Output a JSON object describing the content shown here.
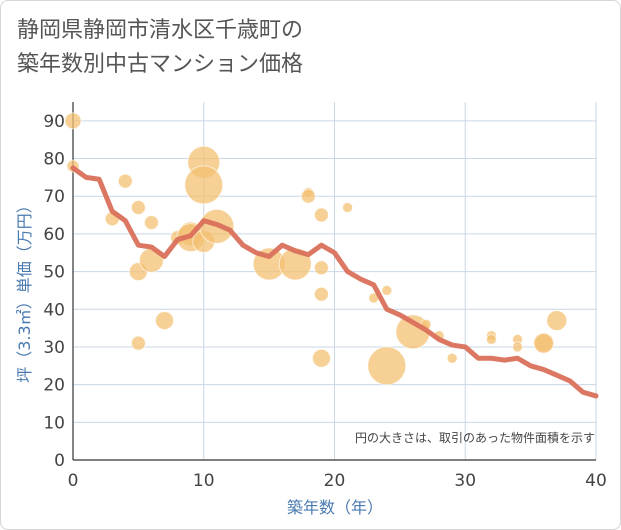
{
  "title": {
    "line1": "静岡県静岡市清水区千歳町の",
    "line2": "築年数別中古マンション価格"
  },
  "chart_data": {
    "type": "scatter",
    "xlabel": "築年数（年）",
    "ylabel": "坪（3.3㎡）単価（万円）",
    "xlim": [
      0,
      40
    ],
    "ylim": [
      0,
      95
    ],
    "xticks": [
      0,
      10,
      20,
      30,
      40
    ],
    "yticks": [
      0,
      10,
      20,
      30,
      40,
      50,
      60,
      70,
      80,
      90
    ],
    "grid": true,
    "note": "円の大きさは、取引のあった物件面積を示す",
    "colors": {
      "bubble": "#f3c071",
      "line": "#d9705a",
      "grid": "#c9d7e6",
      "label": "#4a7ab0"
    },
    "bubbles": [
      {
        "x": 0,
        "y": 90,
        "size": 8
      },
      {
        "x": 0,
        "y": 78,
        "size": 6
      },
      {
        "x": 3,
        "y": 64,
        "size": 7
      },
      {
        "x": 4,
        "y": 74,
        "size": 7
      },
      {
        "x": 5,
        "y": 67,
        "size": 7
      },
      {
        "x": 5,
        "y": 50,
        "size": 9
      },
      {
        "x": 5,
        "y": 31,
        "size": 7
      },
      {
        "x": 6,
        "y": 63,
        "size": 7
      },
      {
        "x": 6,
        "y": 53,
        "size": 12
      },
      {
        "x": 7,
        "y": 37,
        "size": 9
      },
      {
        "x": 8,
        "y": 59,
        "size": 7
      },
      {
        "x": 9,
        "y": 60,
        "size": 12
      },
      {
        "x": 9,
        "y": 59,
        "size": 14
      },
      {
        "x": 10,
        "y": 79,
        "size": 16
      },
      {
        "x": 10,
        "y": 73,
        "size": 19
      },
      {
        "x": 10,
        "y": 58,
        "size": 11
      },
      {
        "x": 11,
        "y": 62,
        "size": 17
      },
      {
        "x": 15,
        "y": 52,
        "size": 16
      },
      {
        "x": 17,
        "y": 52,
        "size": 16
      },
      {
        "x": 18,
        "y": 71,
        "size": 5
      },
      {
        "x": 18,
        "y": 70,
        "size": 7
      },
      {
        "x": 19,
        "y": 65,
        "size": 7
      },
      {
        "x": 19,
        "y": 51,
        "size": 7
      },
      {
        "x": 19,
        "y": 44,
        "size": 7
      },
      {
        "x": 19,
        "y": 27,
        "size": 9
      },
      {
        "x": 21,
        "y": 67,
        "size": 5
      },
      {
        "x": 23,
        "y": 43,
        "size": 5
      },
      {
        "x": 24,
        "y": 45,
        "size": 5
      },
      {
        "x": 24,
        "y": 25,
        "size": 19
      },
      {
        "x": 26,
        "y": 34,
        "size": 17
      },
      {
        "x": 27,
        "y": 36,
        "size": 5
      },
      {
        "x": 28,
        "y": 33,
        "size": 5
      },
      {
        "x": 29,
        "y": 27,
        "size": 5
      },
      {
        "x": 32,
        "y": 33,
        "size": 5
      },
      {
        "x": 32,
        "y": 32,
        "size": 5
      },
      {
        "x": 34,
        "y": 32,
        "size": 5
      },
      {
        "x": 34,
        "y": 30,
        "size": 5
      },
      {
        "x": 36,
        "y": 31,
        "size": 9
      },
      {
        "x": 36,
        "y": 31,
        "size": 10
      },
      {
        "x": 37,
        "y": 37,
        "size": 10
      }
    ],
    "trend": {
      "x": [
        0,
        1,
        2,
        3,
        4,
        5,
        6,
        7,
        8,
        9,
        10,
        11,
        12,
        13,
        14,
        15,
        16,
        17,
        18,
        19,
        20,
        21,
        22,
        23,
        24,
        25,
        26,
        27,
        28,
        29,
        30,
        31,
        32,
        33,
        34,
        35,
        36,
        37,
        38,
        39,
        40
      ],
      "y": [
        77.5,
        75,
        74.5,
        66,
        63.5,
        57,
        56.5,
        54,
        58.5,
        59.5,
        63.5,
        62.5,
        61,
        57,
        55,
        54,
        57,
        55.5,
        54.5,
        57,
        55,
        50,
        48,
        46.5,
        40,
        38.5,
        36.5,
        34.5,
        32,
        30.5,
        30,
        27,
        27,
        26.5,
        27,
        25,
        24,
        22.5,
        21,
        18,
        17
      ]
    }
  }
}
